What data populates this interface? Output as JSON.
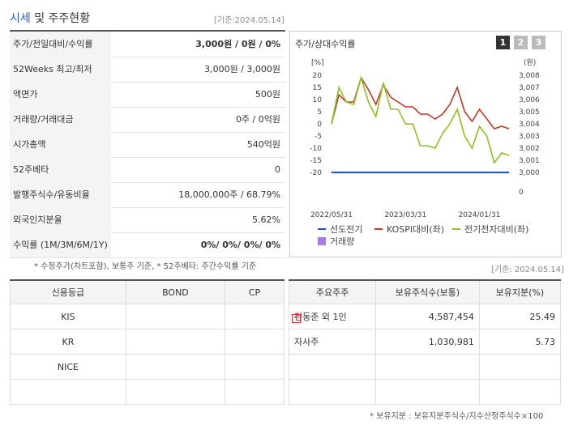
{
  "header": {
    "title_main": "시세",
    "title_rest": "및 주주현황",
    "date": "[기준:2024.05.14]"
  },
  "info_table": {
    "rows": [
      [
        "주가/전일대비/수익률",
        "3,000원 / 0원 / 0%"
      ],
      [
        "52Weeks 최고/최저",
        "3,000원 / 3,000원"
      ],
      [
        "액면가",
        "500원"
      ],
      [
        "거래량/거래대금",
        "0주 / 0억원"
      ],
      [
        "시가총액",
        "540억원"
      ],
      [
        "52주베타",
        "0"
      ],
      [
        "발행주식수/유동비율",
        "18,000,000주 / 68.79%"
      ],
      [
        "외국인지분율",
        "5.62%"
      ],
      [
        "수익률 (1M/3M/6M/1Y)",
        "0%/ 0%/ 0%/ 0%"
      ]
    ]
  },
  "note": "* 수정주가(차트포함), 보통주 기준, * 52주베타: 주간수익률 기준",
  "chart_panel": {
    "title": "주가/상대수익률",
    "buttons": [
      "1",
      "2",
      "3"
    ]
  },
  "chart": {
    "type": "line",
    "y_unit": "[%]",
    "y2_unit": "(원)",
    "x_labels": [
      {
        "index": 0,
        "label": "2022/05/31"
      },
      {
        "index": 10,
        "label": "2023/03/31"
      },
      {
        "index": 20,
        "label": "2024/01/31"
      }
    ],
    "ylim": [
      -20,
      20
    ],
    "yticks": [
      20,
      15,
      10,
      5,
      0,
      -5,
      -10,
      -15,
      -20
    ],
    "y2lim": [
      3000,
      3008
    ],
    "y2ticks": [
      {
        "value": 3008,
        "label": "3,008"
      },
      {
        "value": 3007,
        "label": "3,007"
      },
      {
        "value": 3006,
        "label": "3,006"
      },
      {
        "value": 3005,
        "label": "3,005"
      },
      {
        "value": 3004,
        "label": "3,004"
      },
      {
        "value": 3003,
        "label": "3,003"
      },
      {
        "value": 3002,
        "label": "3,002"
      },
      {
        "value": 3001,
        "label": "3,001"
      },
      {
        "value": 3000,
        "label": "3,000"
      }
    ],
    "y3ticks": [
      0
    ],
    "series": [
      {
        "name": "선도전기",
        "color": "#1f4fd1",
        "axis": "y2",
        "values": [
          3000,
          3000,
          3000,
          3000,
          3000,
          3000,
          3000,
          3000,
          3000,
          3000,
          3000,
          3000,
          3000,
          3000,
          3000,
          3000,
          3000,
          3000,
          3000,
          3000,
          3000,
          3000,
          3000,
          3000,
          3000
        ]
      },
      {
        "name": "KOSPI대비(좌)",
        "color": "#c0392b",
        "values": [
          0,
          12,
          9,
          9,
          19,
          14,
          8,
          16,
          11,
          9,
          7,
          7,
          4,
          4,
          2,
          4,
          8,
          15,
          5,
          1,
          6,
          2,
          -2,
          -1,
          -2
        ]
      },
      {
        "name": "전기전자대비(좌)",
        "color": "#8dc21f",
        "values": [
          0,
          15,
          9,
          8,
          19,
          9,
          3,
          17,
          6,
          6,
          0,
          0,
          -9,
          -9,
          -10,
          -4,
          0,
          6,
          -5,
          -10,
          -1,
          -5,
          -16,
          -12,
          -13
        ]
      }
    ],
    "volume_legend": {
      "name": "거래량",
      "color": "#a77be0"
    }
  },
  "date2": "[기준: 2024.05.14]",
  "credit_table": {
    "header": [
      "신용등급",
      "BOND",
      "CP"
    ],
    "rows": [
      [
        "KIS",
        "",
        ""
      ],
      [
        "KR",
        "",
        ""
      ],
      [
        "NICE",
        "",
        ""
      ]
    ]
  },
  "holder_table": {
    "header": [
      "주요주주",
      "보유주식수(보통)",
      "보유지분(%)"
    ],
    "rows": [
      [
        "전동준 외 1인",
        "4,587,454",
        "25.49"
      ],
      [
        "자사주",
        "1,030,981",
        "5.73"
      ]
    ]
  },
  "footnote": "* 보유지분 : 보유지분주식수/지수산정주식수×100"
}
